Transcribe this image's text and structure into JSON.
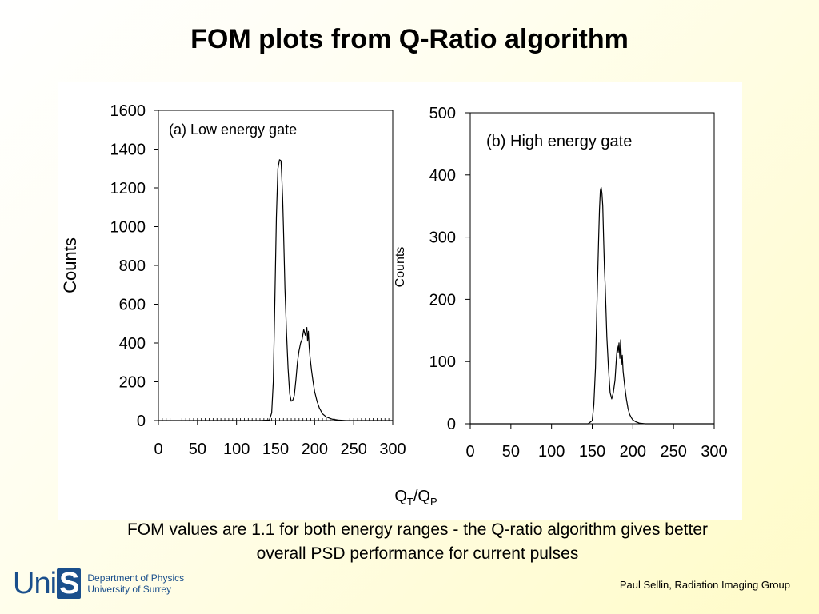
{
  "slide": {
    "title": "FOM plots from Q-Ratio algorithm",
    "caption_line1": "FOM values are 1.1 for both energy ranges - the Q-ratio algorithm gives better",
    "caption_line2": "overall PSD performance for current pulses",
    "shared_xlabel_main": "Q",
    "shared_xlabel_sub1": "T",
    "shared_xlabel_sep": "/Q",
    "shared_xlabel_sub2": "P",
    "logo_word": "Uni",
    "logo_mark": "S",
    "logo_line1": "Department of Physics",
    "logo_line2": "University of Surrey",
    "footer": "Paul Sellin, Radiation Imaging Group"
  },
  "chart_data": [
    {
      "type": "line",
      "annotation": "(a) Low energy gate",
      "xlabel": "",
      "ylabel": "Counts",
      "xlim": [
        0,
        300
      ],
      "ylim": [
        0,
        1600
      ],
      "xticks": [
        0,
        50,
        100,
        150,
        200,
        250,
        300
      ],
      "yticks": [
        0,
        200,
        400,
        600,
        800,
        1000,
        1200,
        1400,
        1600
      ],
      "grid": false,
      "series": [
        {
          "x": [
            0,
            130,
            142,
            145,
            147,
            149,
            151,
            153,
            155,
            157,
            158,
            159,
            160,
            161,
            162,
            164,
            166,
            168,
            170,
            172,
            174,
            176,
            178,
            180,
            182,
            184,
            186,
            188,
            190,
            191,
            192,
            193,
            194,
            196,
            198,
            200,
            203,
            206,
            210,
            215,
            222,
            230,
            240,
            300
          ],
          "y": [
            0,
            0,
            3,
            40,
            200,
            600,
            1050,
            1300,
            1345,
            1340,
            1250,
            1150,
            1000,
            850,
            680,
            450,
            270,
            140,
            100,
            105,
            130,
            210,
            300,
            360,
            400,
            420,
            470,
            440,
            480,
            410,
            460,
            380,
            330,
            260,
            200,
            150,
            100,
            65,
            35,
            18,
            8,
            3,
            0,
            0
          ]
        }
      ]
    },
    {
      "type": "line",
      "annotation": "(b) High energy gate",
      "xlabel": "",
      "ylabel": "Counts",
      "xlim": [
        0,
        300
      ],
      "ylim": [
        0,
        500
      ],
      "xticks": [
        0,
        50,
        100,
        150,
        200,
        250,
        300
      ],
      "yticks": [
        0,
        100,
        200,
        300,
        400,
        500
      ],
      "grid": false,
      "series": [
        {
          "x": [
            0,
            145,
            150,
            152,
            154,
            156,
            158,
            159,
            160,
            161,
            162,
            163,
            164,
            165,
            166,
            167,
            168,
            170,
            172,
            174,
            176,
            178,
            180,
            181,
            182,
            183,
            184,
            185,
            186,
            187,
            188,
            190,
            192,
            194,
            196,
            198,
            200,
            204,
            208,
            215,
            300
          ],
          "y": [
            0,
            0,
            5,
            30,
            90,
            200,
            300,
            345,
            375,
            380,
            370,
            350,
            300,
            250,
            220,
            180,
            140,
            90,
            50,
            40,
            50,
            70,
            110,
            125,
            115,
            130,
            105,
            135,
            95,
            110,
            85,
            60,
            40,
            25,
            15,
            10,
            6,
            3,
            1,
            0,
            0
          ]
        }
      ]
    }
  ]
}
